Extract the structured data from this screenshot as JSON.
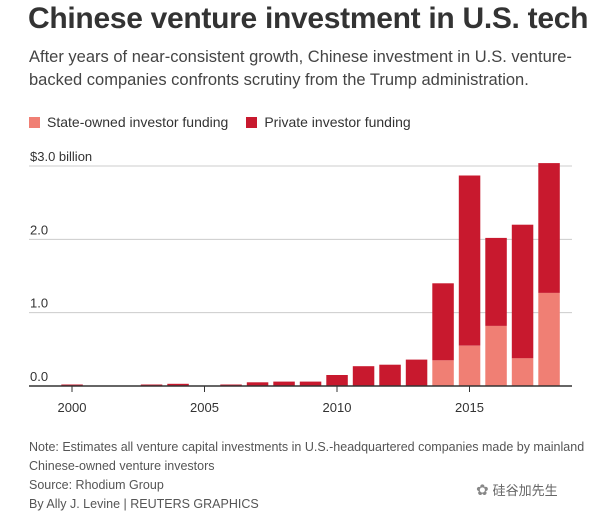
{
  "title": "Chinese venture investment in U.S. tech",
  "subtitle": "After years of near-consistent growth, Chinese investment in U.S. venture-backed companies confronts scrutiny from the Trump administration.",
  "legend": {
    "state_label": "State-owned investor funding",
    "private_label": "Private investor funding"
  },
  "colors": {
    "state": "#f07f74",
    "private": "#c8192e",
    "grid": "#cccccc",
    "axis": "#333333"
  },
  "chart_data": {
    "type": "bar",
    "stacked": true,
    "x": [
      2000,
      2001,
      2002,
      2003,
      2004,
      2005,
      2006,
      2007,
      2008,
      2009,
      2010,
      2011,
      2012,
      2013,
      2014,
      2015,
      2016,
      2017,
      2018
    ],
    "series": [
      {
        "name": "State-owned investor funding",
        "values": [
          0,
          0,
          0,
          0,
          0,
          0,
          0,
          0,
          0,
          0,
          0,
          0,
          0,
          0,
          0.35,
          0.55,
          0.82,
          0.38,
          1.27
        ]
      },
      {
        "name": "Private investor funding",
        "values": [
          0.02,
          0,
          0,
          0.02,
          0.03,
          0,
          0.02,
          0.05,
          0.06,
          0.06,
          0.15,
          0.27,
          0.29,
          0.36,
          1.05,
          2.32,
          1.2,
          1.82,
          1.77
        ]
      }
    ],
    "y_ticks": [
      {
        "value": 3.0,
        "label": "$3.0 billion"
      },
      {
        "value": 2.0,
        "label": "2.0"
      },
      {
        "value": 1.0,
        "label": "1.0"
      },
      {
        "value": 0.0,
        "label": "0.0"
      }
    ],
    "x_ticks": [
      {
        "value": 2000,
        "label": "2000"
      },
      {
        "value": 2005,
        "label": "2005"
      },
      {
        "value": 2010,
        "label": "2010"
      },
      {
        "value": 2015,
        "label": "2015"
      }
    ],
    "ylim": [
      0,
      3.0
    ],
    "grid": true,
    "legend_position": "top-left"
  },
  "notes": {
    "line1": "Note: Estimates all venture capital investments in U.S.-headquartered companies made by mainland",
    "line2": "Chinese-owned venture investors",
    "source": "Source: Rhodium Group",
    "byline": "By Ally J. Levine | REUTERS GRAPHICS"
  },
  "watermark": {
    "icon": "wechat-icon",
    "text": "硅谷加先生"
  }
}
